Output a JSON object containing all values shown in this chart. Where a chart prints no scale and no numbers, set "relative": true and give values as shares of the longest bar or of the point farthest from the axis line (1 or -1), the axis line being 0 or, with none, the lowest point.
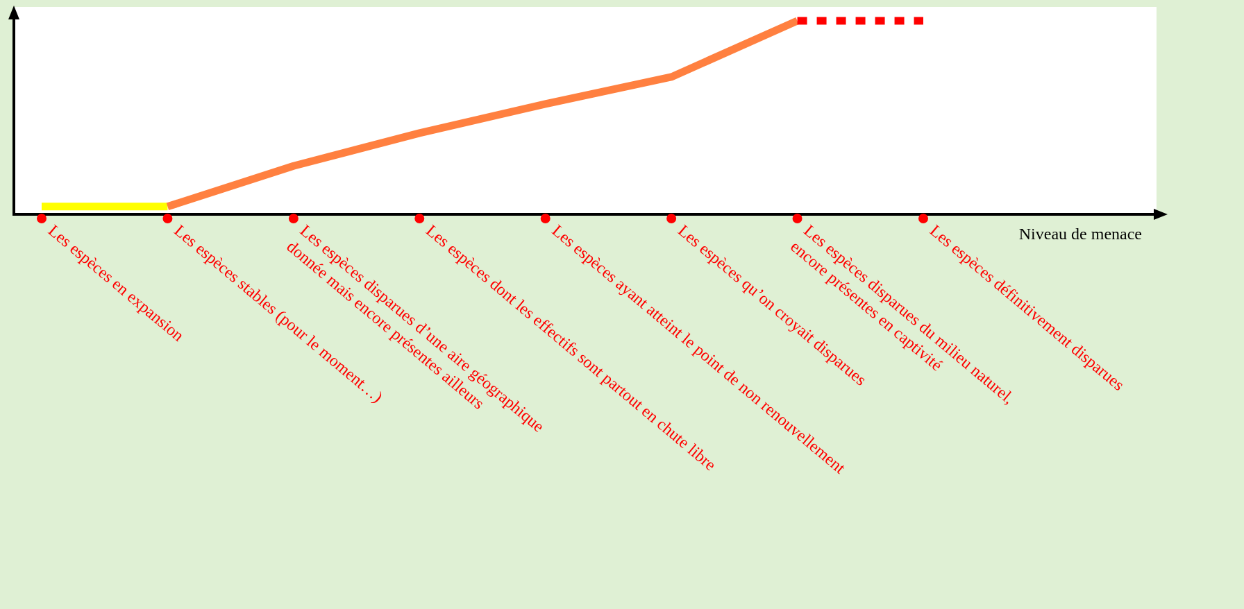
{
  "chart_data": {
    "type": "line",
    "relative": true,
    "xlabel": "Niveau de menace",
    "marker": "none",
    "categories": [
      "Les espèces en expansion",
      "Les espèces stables (pour le moment…)",
      "Les espèces disparues d’une aire géographique\ndonnée mais encore présentes ailleurs",
      "Les espèces dont les effectifs sont partout en chute libre",
      "Les espèces ayant atteint le point de non renouvellement",
      "Les espèces qu’on croyait disparues",
      "Les espèces disparues du milieu naturel,\nencore présentes en captivité",
      "Les espèces définitivement disparues"
    ],
    "series": [
      {
        "color": "#ffff00",
        "line_style": "solid",
        "values": [
          0.04,
          0.04,
          null,
          null,
          null,
          null,
          null,
          null
        ]
      },
      {
        "color": "#ff8040",
        "line_style": "solid",
        "values": [
          null,
          0.04,
          0.25,
          0.42,
          0.57,
          0.71,
          1,
          null
        ]
      },
      {
        "color": "#ff0000",
        "line_style": "dashed",
        "values": [
          null,
          null,
          null,
          null,
          null,
          null,
          1,
          1
        ]
      }
    ]
  }
}
